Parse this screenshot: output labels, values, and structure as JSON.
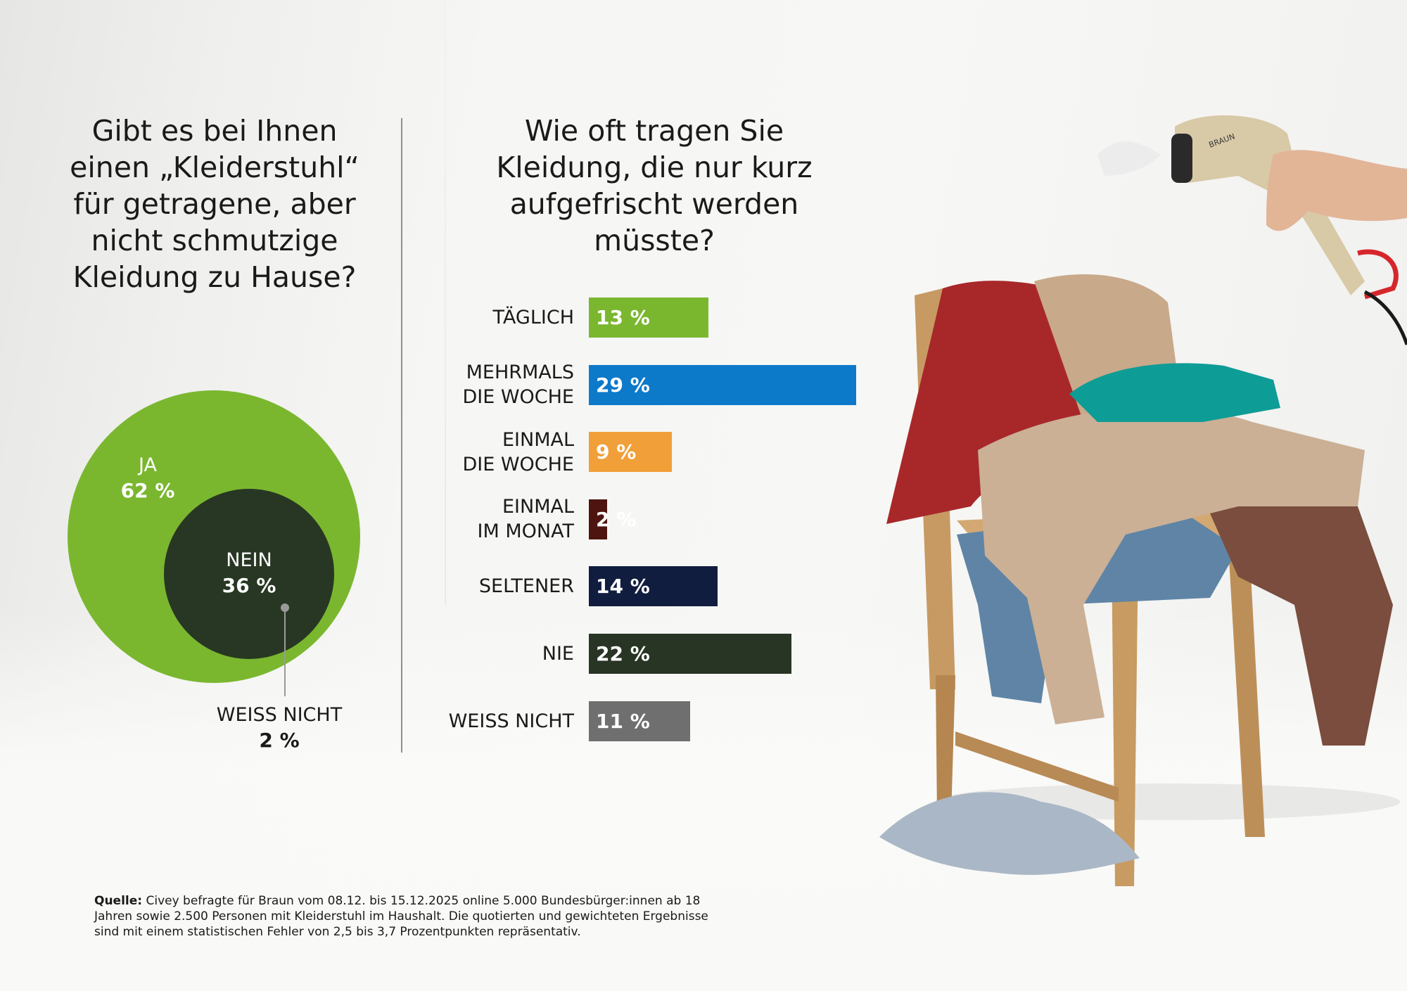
{
  "left_title": "Gibt es bei Ihnen einen „Kleiderstuhl“ für getragene, aber nicht schmutzige Kleidung zu Hause?",
  "right_title": "Wie oft tragen Sie Kleidung, die nur kurz aufgefrischt werden müsste?",
  "colors": {
    "green": "#7ab72f",
    "dark_green": "#283723",
    "blue": "#0d79c9",
    "orange": "#f19f39",
    "brown": "#4e1510",
    "navy": "#101d3f",
    "forest": "#293524",
    "grey": "#6f6f6f"
  },
  "chart_data": [
    {
      "type": "pie",
      "categories": [
        "JA",
        "NEIN",
        "WEISS NICHT"
      ],
      "values": [
        62,
        36,
        2
      ],
      "labels": [
        {
          "name": "JA",
          "value": "62 %"
        },
        {
          "name": "NEIN",
          "value": "36 %"
        },
        {
          "name": "WEISS NICHT",
          "value": "2 %"
        }
      ]
    },
    {
      "type": "bar",
      "orientation": "horizontal",
      "categories": [
        "TÄGLICH",
        "MEHRMALS DIE WOCHE",
        "EINMAL DIE WOCHE",
        "EINMAL IM MONAT",
        "SELTENER",
        "NIE",
        "WEISS NICHT"
      ],
      "category_lines": [
        [
          "TÄGLICH"
        ],
        [
          "MEHRMALS",
          "DIE WOCHE"
        ],
        [
          "EINMAL",
          "DIE WOCHE"
        ],
        [
          "EINMAL",
          "IM MONAT"
        ],
        [
          "SELTENER"
        ],
        [
          "NIE"
        ],
        [
          "WEISS NICHT"
        ]
      ],
      "values": [
        13,
        29,
        9,
        2,
        14,
        22,
        11
      ],
      "value_labels": [
        "13 %",
        "29 %",
        "9 %",
        "2 %",
        "14 %",
        "22 %",
        "11 %"
      ],
      "bar_colors": [
        "#7ab72f",
        "#0d79c9",
        "#f19f39",
        "#4e1510",
        "#101d3f",
        "#293524",
        "#6f6f6f"
      ]
    }
  ],
  "source": {
    "label": "Quelle:",
    "text": "Civey befragte für Braun vom 08.12. bis 15.12.2025 online 5.000 Bundesbürger:innen ab 18 Jahren sowie 2.500 Personen mit Kleiderstuhl im Haushalt. Die quotierten und gewichteten Ergebnisse sind mit einem statistischen Fehler von 2,5 bis 3,7 Prozentpunkten repräsentativ."
  },
  "product_brand": "BRAUN"
}
